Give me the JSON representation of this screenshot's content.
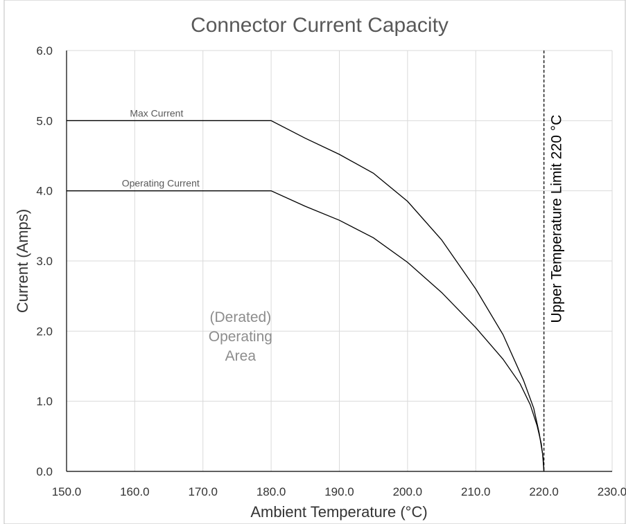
{
  "chart_data": {
    "type": "line",
    "title": "Connector Current Capacity",
    "xlabel": "Ambient Temperature (°C)",
    "ylabel": "Current (Amps)",
    "xlim": [
      150,
      230
    ],
    "ylim": [
      0,
      6
    ],
    "x_ticks": [
      "150.0",
      "160.0",
      "170.0",
      "180.0",
      "190.0",
      "200.0",
      "210.0",
      "220.0",
      "230.0"
    ],
    "y_ticks": [
      "0.0",
      "1.0",
      "2.0",
      "3.0",
      "4.0",
      "5.0",
      "6.0"
    ],
    "grid": true,
    "series": [
      {
        "name": "Max Current",
        "x": [
          150,
          180,
          185,
          190,
          195,
          200,
          205,
          210,
          214,
          217,
          218.5,
          219.3,
          219.8,
          220
        ],
        "y": [
          5.0,
          5.0,
          4.75,
          4.52,
          4.25,
          3.85,
          3.3,
          2.6,
          1.95,
          1.3,
          0.9,
          0.55,
          0.25,
          0.0
        ]
      },
      {
        "name": "Operating Current",
        "x": [
          150,
          180,
          185,
          190,
          195,
          200,
          205,
          210,
          214,
          216.5,
          218,
          219,
          219.6,
          219.9,
          220
        ],
        "y": [
          4.0,
          4.0,
          3.78,
          3.58,
          3.33,
          2.98,
          2.55,
          2.05,
          1.6,
          1.25,
          0.95,
          0.65,
          0.4,
          0.18,
          0.0
        ]
      }
    ],
    "annotations": {
      "region": [
        "(Derated)",
        "Operating",
        "Area"
      ],
      "limit_line": {
        "x": 220,
        "label": "Upper Temperature Limit 220 °C"
      }
    }
  }
}
